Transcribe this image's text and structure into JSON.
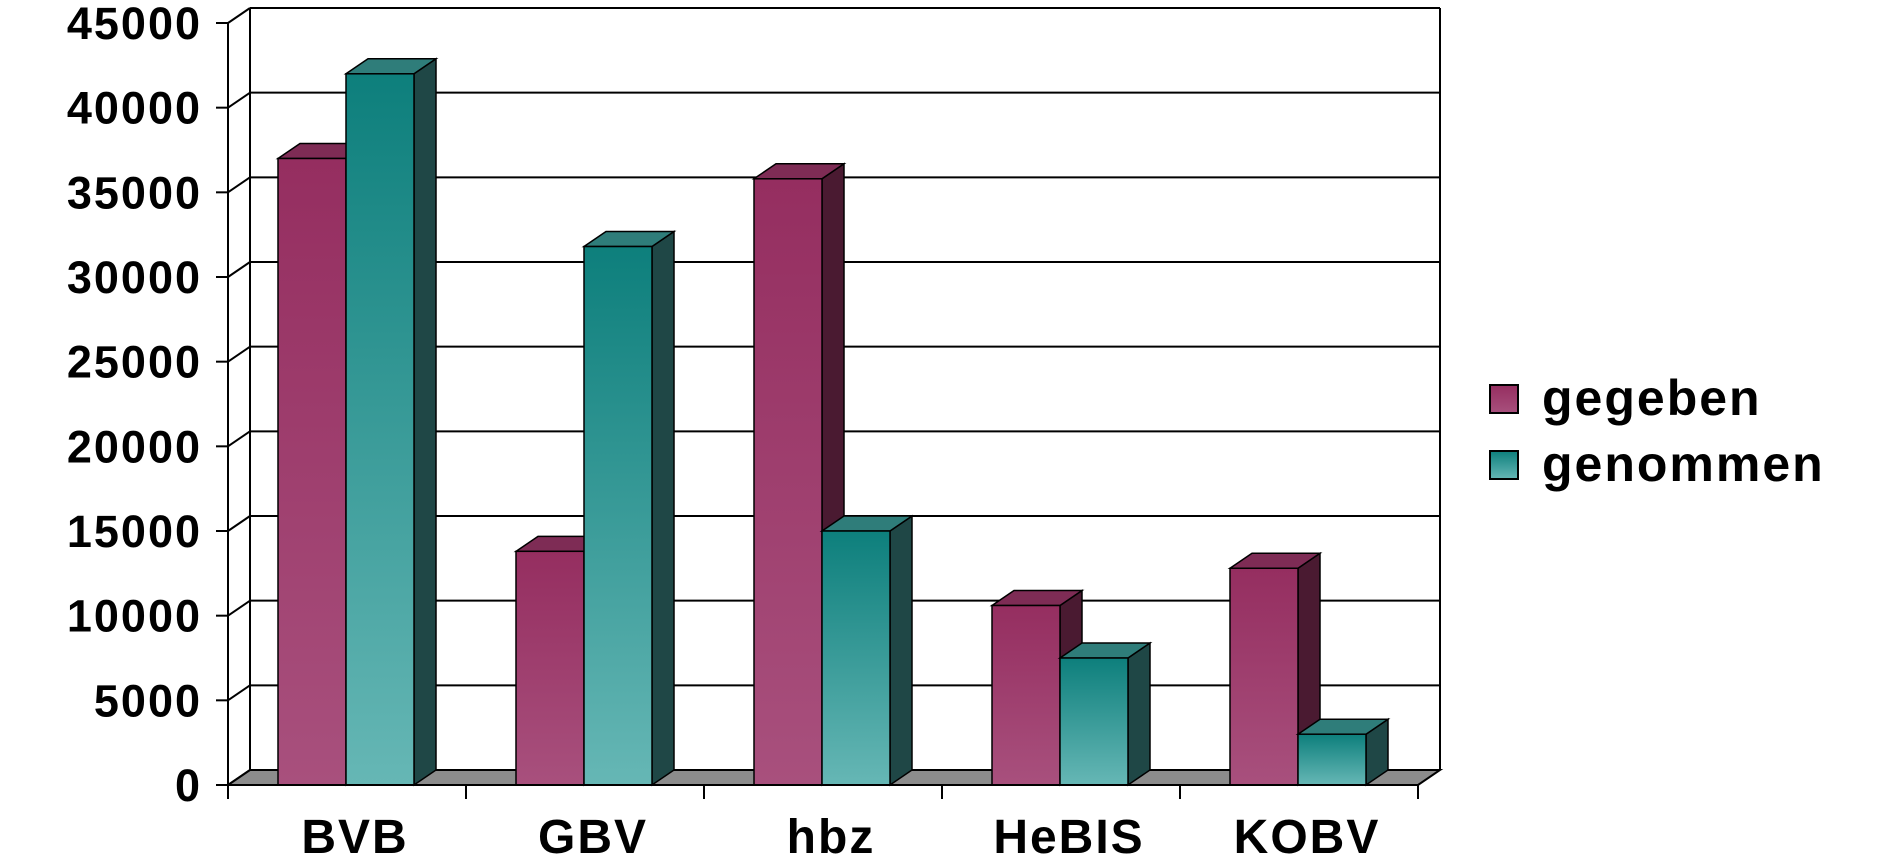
{
  "chart_data": {
    "type": "bar",
    "style": "3d-clustered",
    "categories": [
      "BVB",
      "GBV",
      "hbz",
      "HeBIS",
      "KOBV"
    ],
    "series": [
      {
        "name": "gegeben",
        "values": [
          37000,
          13800,
          35800,
          10600,
          12800
        ],
        "color": "#a8507d",
        "color_top": "#7e2c55",
        "color_side": "#4a1a31",
        "color_gradient_top": "#952e60"
      },
      {
        "name": "genommen",
        "values": [
          42000,
          31800,
          15000,
          7500,
          3000
        ],
        "color": "#66b7b5",
        "color_top": "#2f7d7a",
        "color_side": "#1f4746",
        "color_gradient_top": "#0d7f7c"
      }
    ],
    "ylim": [
      0,
      45000
    ],
    "yticks": [
      "0",
      "5000",
      "10000",
      "15000",
      "20000",
      "25000",
      "30000",
      "35000",
      "40000",
      "45000"
    ],
    "grid": true,
    "legend_position": "right",
    "floor_color": "#8c8c8c"
  }
}
